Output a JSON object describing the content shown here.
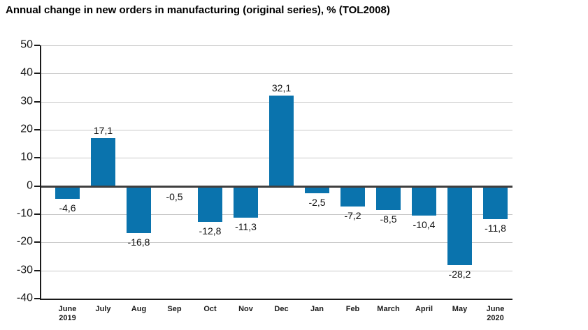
{
  "chart_data": {
    "type": "bar",
    "title": "Annual change in new orders in manufacturing (original series), % (TOL2008)",
    "categories": [
      {
        "label": "June",
        "sublabel": "2019"
      },
      {
        "label": "July"
      },
      {
        "label": "Aug"
      },
      {
        "label": "Sep"
      },
      {
        "label": "Oct"
      },
      {
        "label": "Nov"
      },
      {
        "label": "Dec"
      },
      {
        "label": "Jan"
      },
      {
        "label": "Feb"
      },
      {
        "label": "March"
      },
      {
        "label": "April"
      },
      {
        "label": "May"
      },
      {
        "label": "June",
        "sublabel": "2020"
      }
    ],
    "values": [
      -4.6,
      17.1,
      -16.8,
      -0.5,
      -12.8,
      -11.3,
      32.1,
      -2.5,
      -7.2,
      -8.5,
      -10.4,
      -28.2,
      -11.8
    ],
    "value_labels": [
      "-4,6",
      "17,1",
      "-16,8",
      "-0,5",
      "-12,8",
      "-11,3",
      "32,1",
      "-2,5",
      "-7,2",
      "-8,5",
      "-10,4",
      "-28,2",
      "-11,8"
    ],
    "y_ticks": [
      {
        "value": 50,
        "label": "50"
      },
      {
        "value": 40,
        "label": "40"
      },
      {
        "value": 30,
        "label": "30"
      },
      {
        "value": 20,
        "label": "20"
      },
      {
        "value": 10,
        "label": "10"
      },
      {
        "value": 0,
        "label": "0"
      },
      {
        "value": -10,
        "label": "-10"
      },
      {
        "value": -20,
        "label": "-20"
      },
      {
        "value": -30,
        "label": "-30"
      },
      {
        "value": -40,
        "label": "-40"
      }
    ],
    "ylim": [
      -40,
      50
    ],
    "xlabel": "",
    "ylabel": "",
    "grid": true,
    "legend": false,
    "bar_color": "#0a73ad",
    "gridline_color": "#c8c8c8",
    "zero_line_color": "#3f3f3f",
    "axis_color": "#1a1a1a",
    "text_color": "#111111",
    "background_color": "#ffffff"
  }
}
